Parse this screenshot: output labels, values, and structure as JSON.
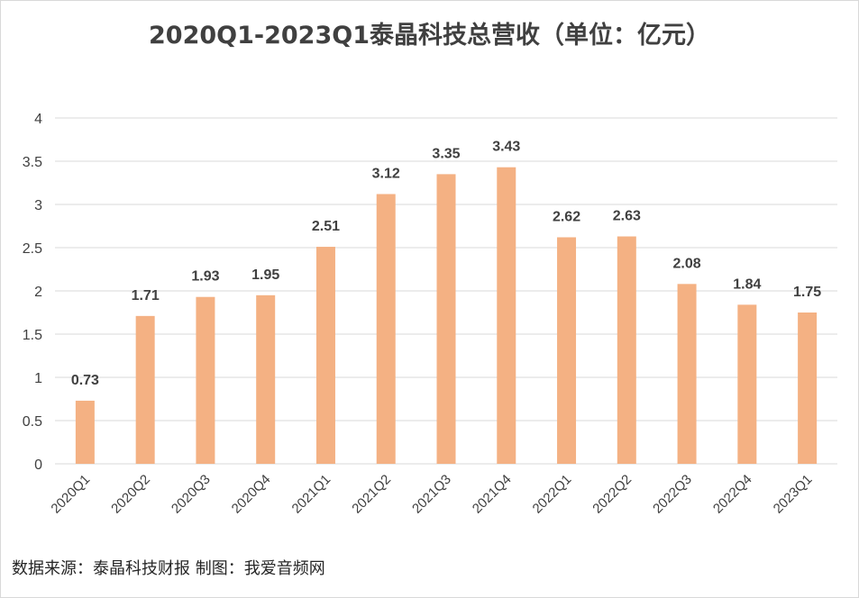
{
  "chart_data": {
    "type": "bar",
    "title": "2020Q1-2023Q1泰晶科技总营收（单位：亿元）",
    "categories": [
      "2020Q1",
      "2020Q2",
      "2020Q3",
      "2020Q4",
      "2021Q1",
      "2021Q2",
      "2021Q3",
      "2021Q4",
      "2022Q1",
      "2022Q2",
      "2022Q3",
      "2022Q4",
      "2023Q1"
    ],
    "values": [
      0.73,
      1.71,
      1.93,
      1.95,
      2.51,
      3.12,
      3.35,
      3.43,
      2.62,
      2.63,
      2.08,
      1.84,
      1.75
    ],
    "data_labels": [
      "0.73",
      "1.71",
      "1.93",
      "1.95",
      "2.51",
      "3.12",
      "3.35",
      "3.43",
      "2.62",
      "2.63",
      "2.08",
      "1.84",
      "1.75"
    ],
    "yticks": [
      "0",
      "0.5",
      "1",
      "1.5",
      "2",
      "2.5",
      "3",
      "3.5",
      "4"
    ],
    "ylim": [
      0,
      4
    ],
    "grid": true,
    "legend": "none",
    "bar_color": "#F4B183",
    "grid_color": "#d9d9d9"
  },
  "footer": {
    "source": "数据来源：泰晶科技财报  制图：我爱音频网"
  }
}
